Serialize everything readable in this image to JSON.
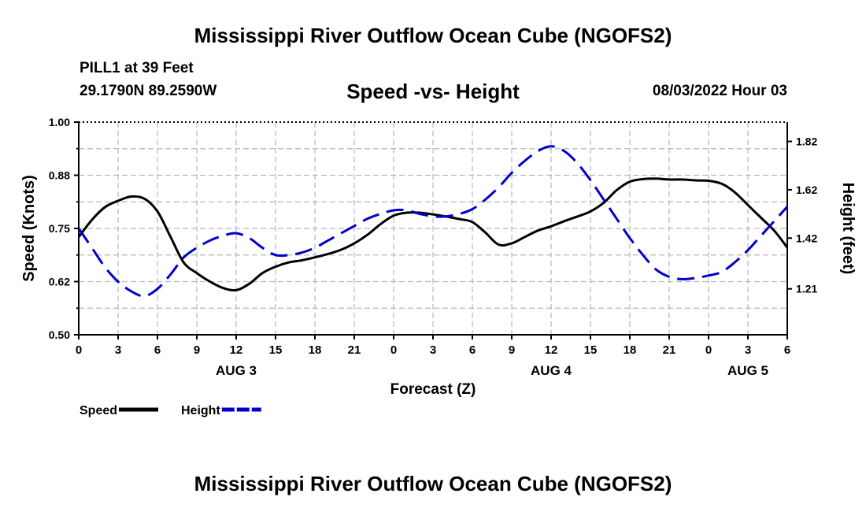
{
  "header": {
    "title": "Mississippi River Outflow Ocean Cube (NGOFS2)",
    "station": "PILL1 at 39 Feet",
    "coordinates": "29.1790N  89.2590W",
    "subtitle": "Speed -vs- Height",
    "timestamp": "08/03/2022 Hour 03"
  },
  "footer": {
    "title": "Mississippi River Outflow Ocean Cube (NGOFS2)"
  },
  "chart_data": {
    "type": "line",
    "title": "Speed -vs- Height",
    "xlabel": "Forecast (Z)",
    "ylabel": "Speed (Knots)",
    "y2label": "Height (feet)",
    "xlim": [
      0,
      54
    ],
    "x_tick_values": [
      0,
      3,
      6,
      9,
      12,
      15,
      18,
      21,
      24,
      27,
      30,
      33,
      36,
      39,
      42,
      45,
      48,
      51,
      54
    ],
    "x_tick_labels": [
      "0",
      "3",
      "6",
      "9",
      "12",
      "15",
      "18",
      "21",
      "0",
      "3",
      "6",
      "9",
      "12",
      "15",
      "18",
      "21",
      "0",
      "3",
      "6"
    ],
    "date_labels": [
      {
        "x": 12,
        "label": "AUG 3"
      },
      {
        "x": 36,
        "label": "AUG 4"
      },
      {
        "x": 51,
        "label": "AUG 5"
      }
    ],
    "ylim": [
      0.5,
      1.0
    ],
    "y_tick_values": [
      0.5,
      0.625,
      0.75,
      0.875,
      1.0
    ],
    "y_tick_labels": [
      "0.50",
      "0.62",
      "0.75",
      "0.88",
      "1.00"
    ],
    "y2lim": [
      1.02,
      1.9
    ],
    "y2_tick_values": [
      1.21,
      1.42,
      1.62,
      1.82
    ],
    "y2_tick_labels": [
      "1.21",
      "1.42",
      "1.62",
      "1.82"
    ],
    "grid": true,
    "legend": "bottom-left",
    "series": [
      {
        "name": "Speed",
        "axis": "left",
        "color": "#000000",
        "dash": "solid",
        "x": [
          0,
          1,
          2,
          3,
          4,
          5,
          6,
          7,
          8,
          9,
          10,
          11,
          12,
          13,
          14,
          15,
          16,
          17,
          18,
          19,
          20,
          21,
          22,
          23,
          24,
          25,
          26,
          27,
          28,
          29,
          30,
          31,
          32,
          33,
          34,
          35,
          36,
          37,
          38,
          39,
          40,
          41,
          42,
          43,
          44,
          45,
          46,
          47,
          48,
          49,
          50,
          51,
          52,
          53,
          54
        ],
        "y": [
          0.73,
          0.77,
          0.8,
          0.815,
          0.825,
          0.82,
          0.79,
          0.73,
          0.67,
          0.645,
          0.625,
          0.61,
          0.605,
          0.62,
          0.645,
          0.66,
          0.67,
          0.675,
          0.682,
          0.69,
          0.7,
          0.715,
          0.735,
          0.76,
          0.78,
          0.787,
          0.787,
          0.783,
          0.778,
          0.772,
          0.765,
          0.74,
          0.712,
          0.715,
          0.73,
          0.745,
          0.755,
          0.767,
          0.778,
          0.79,
          0.81,
          0.84,
          0.86,
          0.866,
          0.867,
          0.865,
          0.865,
          0.863,
          0.862,
          0.855,
          0.835,
          0.805,
          0.775,
          0.745,
          0.705
        ]
      },
      {
        "name": "Height",
        "axis": "right",
        "color": "#0000cc",
        "dash": "dashed",
        "x": [
          0,
          1,
          2,
          3,
          4,
          5,
          6,
          7,
          8,
          9,
          10,
          11,
          12,
          13,
          14,
          15,
          16,
          17,
          18,
          19,
          20,
          21,
          22,
          23,
          24,
          25,
          26,
          27,
          28,
          29,
          30,
          31,
          32,
          33,
          34,
          35,
          36,
          37,
          38,
          39,
          40,
          41,
          42,
          43,
          44,
          45,
          46,
          47,
          48,
          49,
          50,
          51,
          52,
          53,
          54
        ],
        "y": [
          1.46,
          1.38,
          1.3,
          1.24,
          1.2,
          1.18,
          1.21,
          1.27,
          1.34,
          1.38,
          1.41,
          1.43,
          1.44,
          1.42,
          1.38,
          1.35,
          1.35,
          1.36,
          1.38,
          1.41,
          1.44,
          1.47,
          1.5,
          1.52,
          1.535,
          1.535,
          1.52,
          1.51,
          1.51,
          1.52,
          1.54,
          1.58,
          1.63,
          1.69,
          1.74,
          1.78,
          1.8,
          1.78,
          1.73,
          1.66,
          1.58,
          1.5,
          1.42,
          1.35,
          1.29,
          1.26,
          1.25,
          1.255,
          1.265,
          1.28,
          1.32,
          1.37,
          1.43,
          1.49,
          1.55
        ]
      }
    ]
  }
}
